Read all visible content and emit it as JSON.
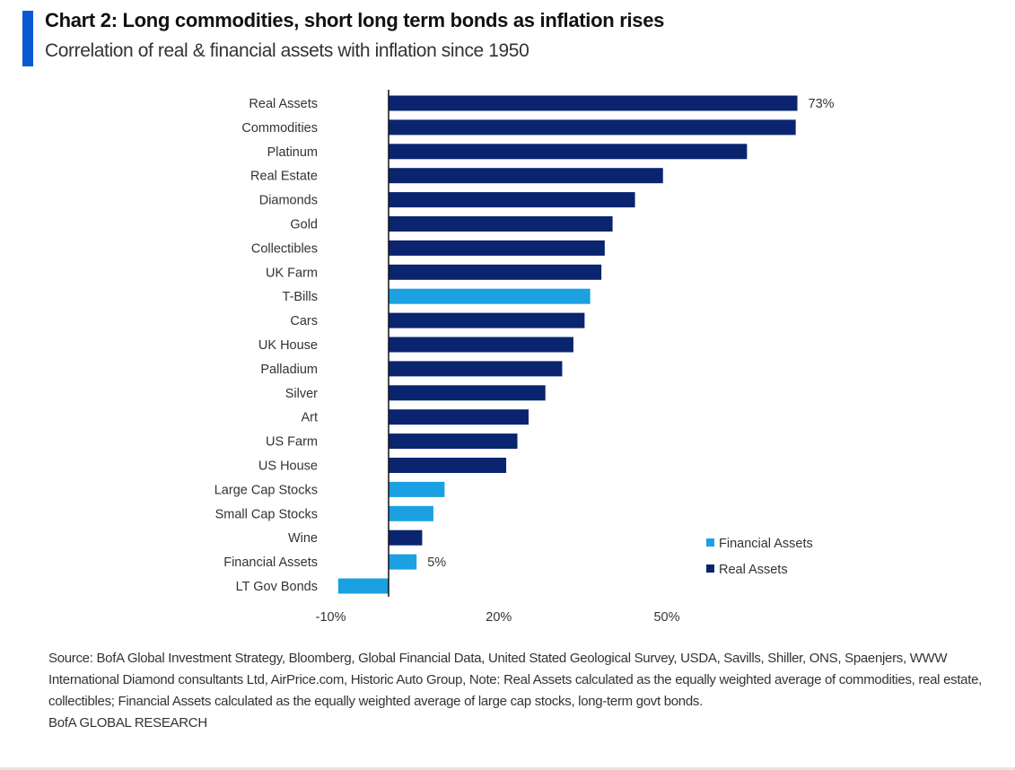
{
  "header": {
    "title": "Chart 2: Long commodities, short long term bonds as inflation rises",
    "subtitle": "Correlation of real & financial assets with inflation since 1950",
    "accent_color": "#0a5ad4"
  },
  "chart_data": {
    "type": "bar",
    "orientation": "horizontal",
    "title": "Chart 2: Long commodities, short long term bonds as inflation rises",
    "subtitle": "Correlation of real & financial assets with inflation since 1950",
    "xlabel": "",
    "ylabel": "",
    "xlim": [
      -10,
      73
    ],
    "x_ticks": [
      -10,
      20,
      50
    ],
    "x_tick_labels": [
      "-10%",
      "20%",
      "50%"
    ],
    "grid": false,
    "legend_position": "bottom-right",
    "legend": [
      {
        "name": "Financial Assets",
        "color": "#1ba1e2"
      },
      {
        "name": "Real Assets",
        "color": "#0b2470"
      }
    ],
    "categories": [
      "Real Assets",
      "Commodities",
      "Platinum",
      "Real Estate",
      "Diamonds",
      "Gold",
      "Collectibles",
      "UK Farm",
      "T-Bills",
      "Cars",
      "UK House",
      "Palladium",
      "Silver",
      "Art",
      "US Farm",
      "US House",
      "Large Cap Stocks",
      "Small Cap Stocks",
      "Wine",
      "Financial Assets",
      "LT Gov Bonds"
    ],
    "values": [
      73,
      72.7,
      64,
      49,
      44,
      40,
      38.6,
      38,
      36,
      35,
      33,
      31,
      28,
      25,
      23,
      21,
      10,
      8,
      6,
      5,
      -9
    ],
    "groups": [
      "Real Assets",
      "Real Assets",
      "Real Assets",
      "Real Assets",
      "Real Assets",
      "Real Assets",
      "Real Assets",
      "Real Assets",
      "Financial Assets",
      "Real Assets",
      "Real Assets",
      "Real Assets",
      "Real Assets",
      "Real Assets",
      "Real Assets",
      "Real Assets",
      "Financial Assets",
      "Financial Assets",
      "Real Assets",
      "Financial Assets",
      "Financial Assets"
    ],
    "data_labels": [
      {
        "category": "Real Assets",
        "text": "73%"
      },
      {
        "category": "Financial Assets",
        "text": "5%"
      }
    ],
    "unit": "%"
  },
  "footer": {
    "source": "Source:  BofA Global Investment Strategy, Bloomberg, Global Financial Data, United Stated Geological  Survey, USDA, Savills, Shiller, ONS, Spaenjers,  WWW International Diamond consultants  Ltd, AirPrice.com, Historic Auto Group, Note:  Real Assets calculated as the equally weighted average of commodities, real estate, collectibles;  Financial Assets calculated as the equally weighted average of large cap stocks,  long-term govt bonds.",
    "brand": "BofA GLOBAL RESEARCH"
  }
}
